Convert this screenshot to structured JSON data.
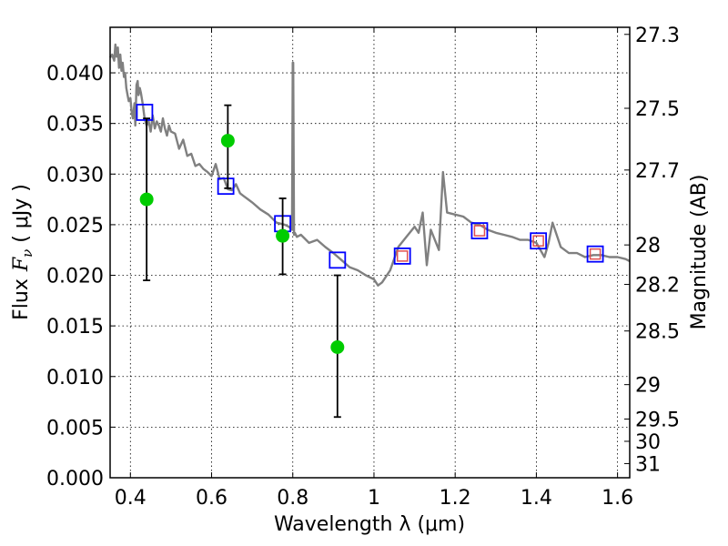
{
  "chart_data": {
    "type": "scatter",
    "xlabel": "Wavelength  λ (μm)",
    "ylabel_prefix": "Flux",
    "ylabel_symbol": "F",
    "ylabel_subscript": "ν",
    "ylabel_suffix": " ( μJy )",
    "y2label": "Magnitude (AB)",
    "xlim": [
      0.35,
      1.63
    ],
    "ylim": [
      0.0,
      0.0445
    ],
    "grid": true,
    "x_ticks": [
      {
        "value": 0.4,
        "label": "0.4"
      },
      {
        "value": 0.6,
        "label": "0.6"
      },
      {
        "value": 0.8,
        "label": "0.8"
      },
      {
        "value": 1.0,
        "label": "1"
      },
      {
        "value": 1.2,
        "label": "1.2"
      },
      {
        "value": 1.4,
        "label": "1.4"
      },
      {
        "value": 1.6,
        "label": "1.6"
      }
    ],
    "y_ticks": [
      {
        "value": 0.0,
        "label": "0.000"
      },
      {
        "value": 0.005,
        "label": "0.005"
      },
      {
        "value": 0.01,
        "label": "0.010"
      },
      {
        "value": 0.015,
        "label": "0.015"
      },
      {
        "value": 0.02,
        "label": "0.020"
      },
      {
        "value": 0.025,
        "label": "0.025"
      },
      {
        "value": 0.03,
        "label": "0.030"
      },
      {
        "value": 0.035,
        "label": "0.035"
      },
      {
        "value": 0.04,
        "label": "0.040"
      }
    ],
    "y2_ticks": [
      {
        "flux": 0.0438,
        "label": "27.3"
      },
      {
        "flux": 0.0365,
        "label": "27.5"
      },
      {
        "flux": 0.0304,
        "label": "27.7"
      },
      {
        "flux": 0.023,
        "label": "28"
      },
      {
        "flux": 0.0191,
        "label": "28.2"
      },
      {
        "flux": 0.0145,
        "label": "28.5"
      },
      {
        "flux": 0.0092,
        "label": "29"
      },
      {
        "flux": 0.0058,
        "label": "29.5"
      },
      {
        "flux": 0.0036,
        "label": "30"
      },
      {
        "flux": 0.0014,
        "label": "31"
      }
    ],
    "series": [
      {
        "kind": "line",
        "color": "#808080",
        "x": [
          0.35,
          0.355,
          0.36,
          0.363,
          0.366,
          0.369,
          0.372,
          0.375,
          0.378,
          0.381,
          0.384,
          0.387,
          0.39,
          0.393,
          0.396,
          0.4,
          0.403,
          0.406,
          0.41,
          0.412,
          0.415,
          0.418,
          0.42,
          0.423,
          0.426,
          0.43,
          0.435,
          0.44,
          0.445,
          0.45,
          0.455,
          0.46,
          0.465,
          0.47,
          0.475,
          0.48,
          0.485,
          0.49,
          0.495,
          0.5,
          0.51,
          0.52,
          0.53,
          0.54,
          0.55,
          0.56,
          0.57,
          0.58,
          0.59,
          0.6,
          0.61,
          0.62,
          0.63,
          0.64,
          0.65,
          0.66,
          0.67,
          0.68,
          0.69,
          0.7,
          0.72,
          0.74,
          0.76,
          0.78,
          0.79,
          0.798,
          0.8,
          0.801,
          0.803,
          0.805,
          0.81,
          0.82,
          0.84,
          0.86,
          0.88,
          0.9,
          0.92,
          0.94,
          0.96,
          0.98,
          1.0,
          1.01,
          1.02,
          1.04,
          1.06,
          1.08,
          1.1,
          1.11,
          1.12,
          1.13,
          1.14,
          1.16,
          1.17,
          1.18,
          1.2,
          1.22,
          1.24,
          1.26,
          1.28,
          1.3,
          1.32,
          1.34,
          1.36,
          1.38,
          1.4,
          1.42,
          1.43,
          1.44,
          1.46,
          1.48,
          1.5,
          1.52,
          1.54,
          1.56,
          1.58,
          1.6,
          1.62,
          1.63
        ],
        "y": [
          0.0415,
          0.0418,
          0.0412,
          0.0428,
          0.0416,
          0.0425,
          0.0405,
          0.0418,
          0.0402,
          0.041,
          0.0396,
          0.04,
          0.0385,
          0.0378,
          0.0372,
          0.0375,
          0.0362,
          0.0355,
          0.037,
          0.0348,
          0.0388,
          0.0392,
          0.0378,
          0.0385,
          0.038,
          0.037,
          0.0355,
          0.0348,
          0.0352,
          0.0342,
          0.0358,
          0.0345,
          0.0352,
          0.0348,
          0.0342,
          0.0355,
          0.0345,
          0.0338,
          0.0348,
          0.0342,
          0.034,
          0.0325,
          0.0334,
          0.0318,
          0.032,
          0.0308,
          0.031,
          0.0305,
          0.0302,
          0.0298,
          0.031,
          0.0295,
          0.0296,
          0.0285,
          0.0284,
          0.029,
          0.0281,
          0.0278,
          0.0275,
          0.0272,
          0.0265,
          0.026,
          0.0252,
          0.025,
          0.0248,
          0.0245,
          0.041,
          0.041,
          0.024,
          0.0242,
          0.0238,
          0.024,
          0.0232,
          0.0235,
          0.0228,
          0.0222,
          0.0215,
          0.0208,
          0.0205,
          0.02,
          0.0196,
          0.019,
          0.0193,
          0.0205,
          0.0228,
          0.0238,
          0.0248,
          0.0242,
          0.0262,
          0.021,
          0.0245,
          0.0225,
          0.0302,
          0.0262,
          0.026,
          0.0258,
          0.0252,
          0.025,
          0.0245,
          0.0242,
          0.024,
          0.0238,
          0.0235,
          0.0235,
          0.0232,
          0.0218,
          0.0232,
          0.0252,
          0.0228,
          0.0222,
          0.0222,
          0.0218,
          0.022,
          0.022,
          0.0218,
          0.0218,
          0.0216,
          0.0214
        ]
      },
      {
        "kind": "markers",
        "marker": "open-square",
        "color": "#0000ff",
        "x": [
          0.435,
          0.635,
          0.775,
          0.91,
          1.07,
          1.26,
          1.405,
          1.545
        ],
        "y": [
          0.0361,
          0.0288,
          0.0251,
          0.0215,
          0.0219,
          0.0244,
          0.0234,
          0.0221
        ]
      },
      {
        "kind": "markers",
        "marker": "open-square",
        "color": "#e05050",
        "x": [
          1.07,
          1.26,
          1.405,
          1.545
        ],
        "y": [
          0.0219,
          0.0244,
          0.0234,
          0.0221
        ]
      },
      {
        "kind": "markers",
        "marker": "filled-circle",
        "color": "#00cc00",
        "x": [
          0.44,
          0.64,
          0.775,
          0.91
        ],
        "y": [
          0.0275,
          0.0333,
          0.0239,
          0.0129
        ],
        "yerr_low": [
          0.0195,
          0.0286,
          0.0201,
          0.006
        ],
        "yerr_high": [
          0.0355,
          0.0368,
          0.0276,
          0.02
        ]
      }
    ]
  }
}
